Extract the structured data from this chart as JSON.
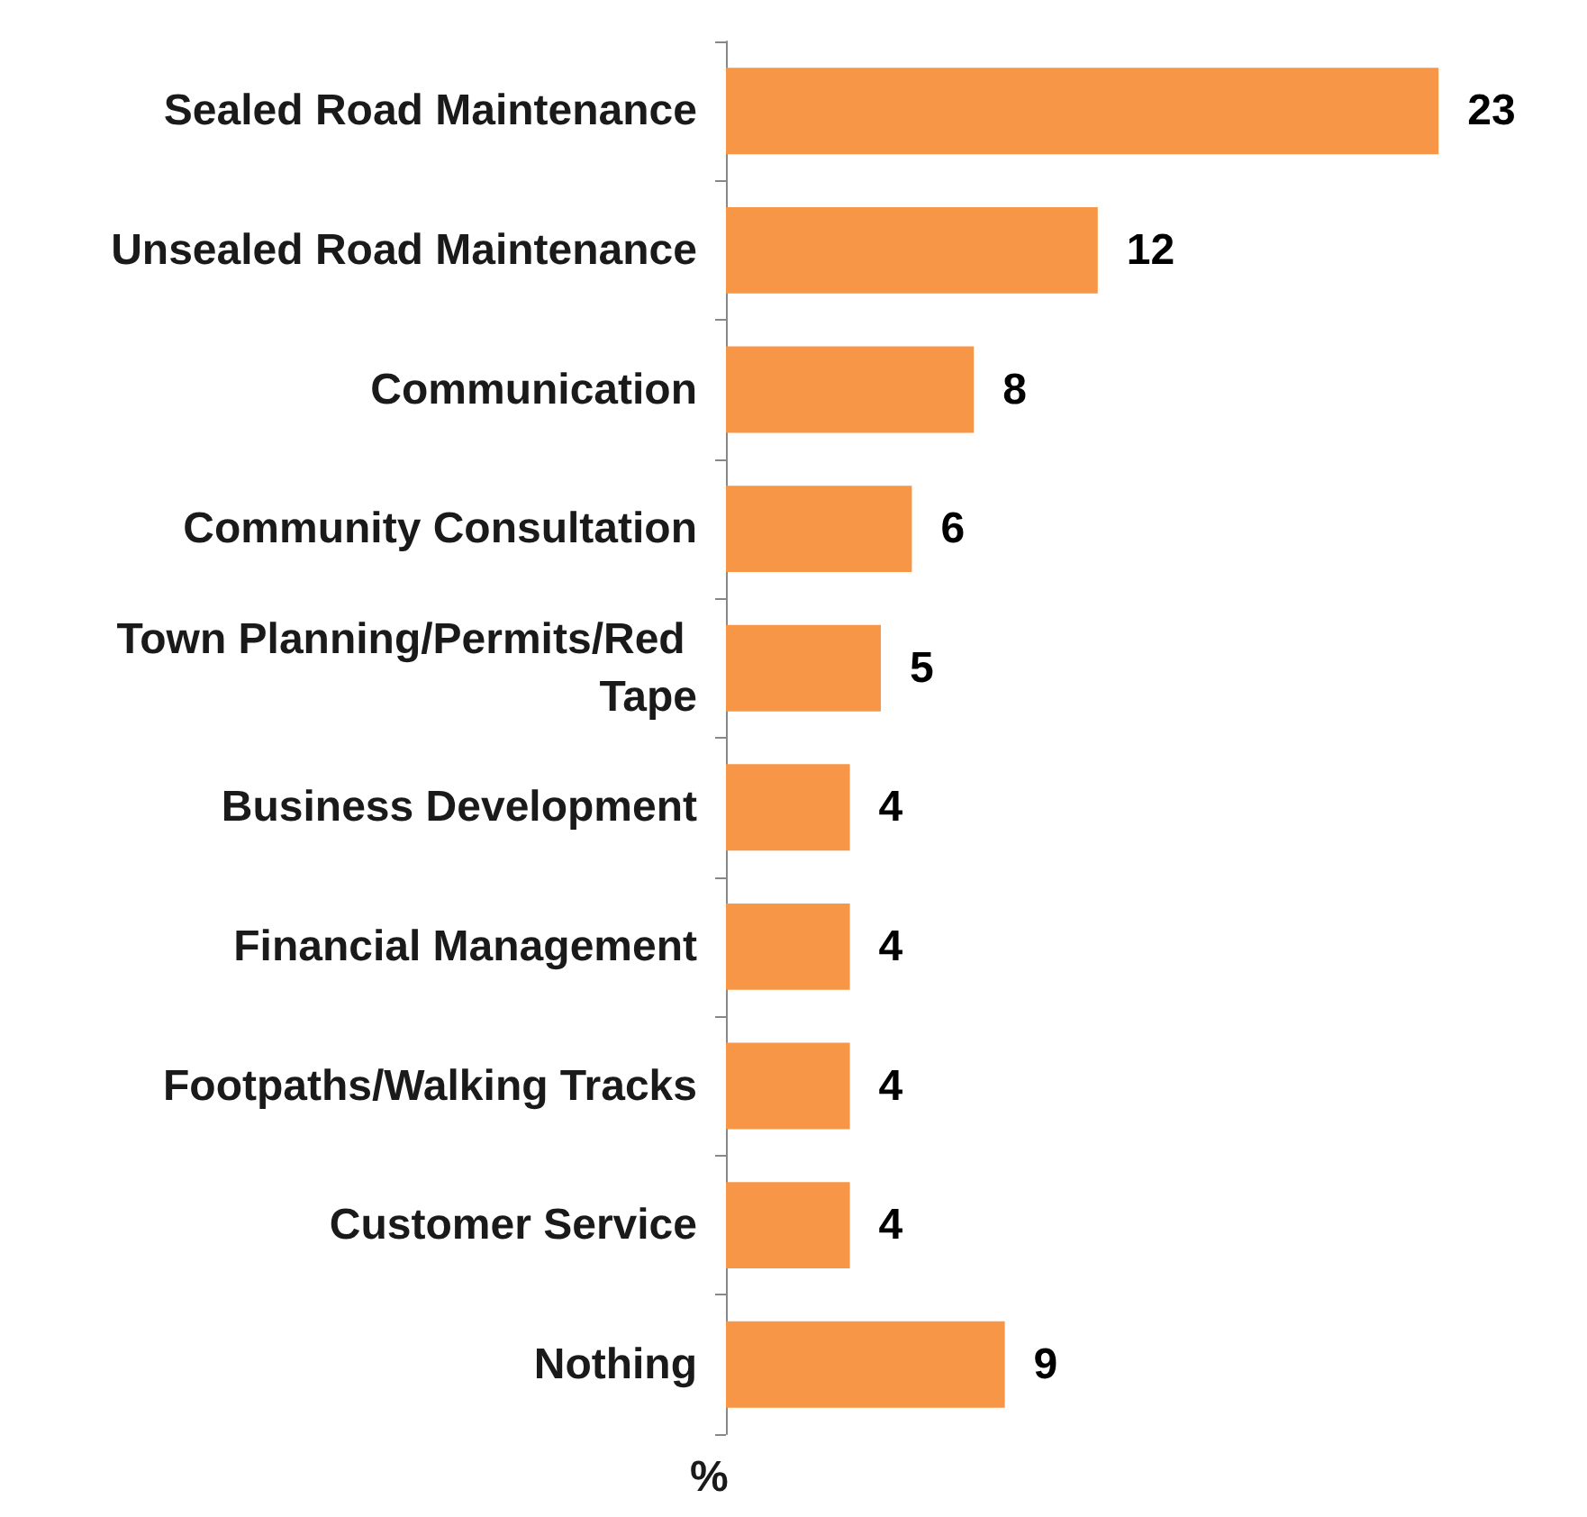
{
  "chart_data": {
    "type": "bar",
    "orientation": "horizontal",
    "xlabel": "%",
    "categories": [
      "Sealed Road Maintenance",
      "Unsealed Road Maintenance",
      "Communication",
      "Community Consultation",
      "Town Planning/Permits/Red Tape",
      "Business Development",
      "Financial Management",
      "Footpaths/Walking Tracks",
      "Customer Service",
      "Nothing"
    ],
    "values": [
      23,
      12,
      8,
      6,
      5,
      4,
      4,
      4,
      4,
      9
    ],
    "color": "#f79646",
    "data_labels": true,
    "grid": false
  }
}
